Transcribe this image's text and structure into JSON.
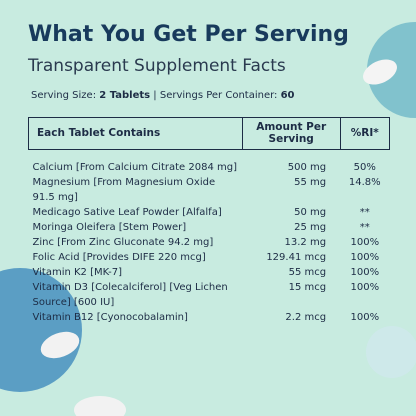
{
  "header": {
    "title": "What You Get Per Serving",
    "subtitle": "Transparent Supplement Facts"
  },
  "serving": {
    "size_label": "Serving Size:",
    "size": "2 Tablets",
    "separator": "|",
    "per_container_label": "Servings Per Container:",
    "per_container": "60"
  },
  "table": {
    "columns": [
      "Each Tablet Contains",
      "Amount Per Serving",
      "%RI*"
    ],
    "rows": [
      [
        "Calcium [From Calcium Citrate 2084 mg]",
        "500 mg",
        "50%"
      ],
      [
        "Magnesium [From Magnesium Oxide 91.5 mg]",
        "55 mg",
        "14.8%"
      ],
      [
        "Medicago Sative Leaf Powder [Alfalfa]",
        "50 mg",
        "**"
      ],
      [
        "Moringa Oleifera [Stem Power]",
        "25 mg",
        "**"
      ],
      [
        "Zinc [From Zinc Gluconate 94.2 mg]",
        "13.2 mg",
        "100%"
      ],
      [
        "Folic Acid [Provides DIFE 220 mcg]",
        "129.41 mcg",
        "100%"
      ],
      [
        "Vitamin K2 [MK-7]",
        "55 mcg",
        "100%"
      ],
      [
        "Vitamin D3 [Colecalciferol] [Veg Lichen Source] [600 IU]",
        "15 mcg",
        "100%"
      ],
      [
        "Vitamin B12 [Cyonocobalamin]",
        "2.2 mcg",
        "100%"
      ]
    ]
  }
}
